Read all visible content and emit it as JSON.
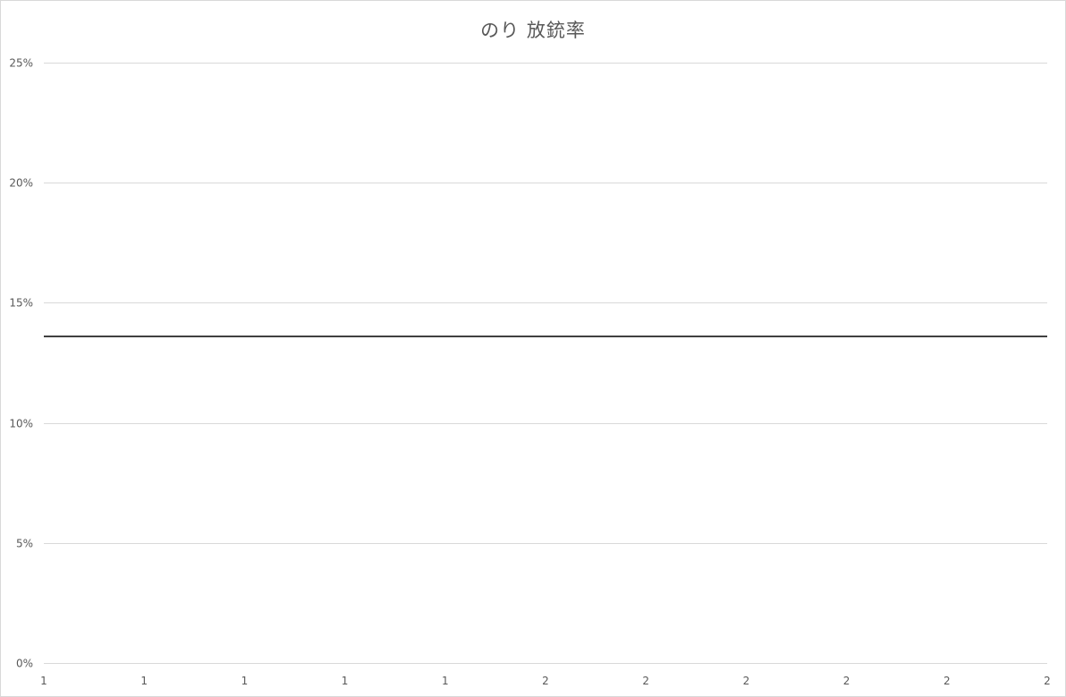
{
  "chart_data": {
    "type": "line",
    "title": "のり 放銃率",
    "xlabel": "",
    "ylabel": "",
    "x_tick_labels": [
      "1",
      "1",
      "1",
      "1",
      "1",
      "2",
      "2",
      "2",
      "2",
      "2",
      "2"
    ],
    "y_tick_labels": [
      "0%",
      "5%",
      "10%",
      "15%",
      "20%",
      "25%"
    ],
    "y_ticks": [
      0,
      5,
      10,
      15,
      20,
      25
    ],
    "ylim": [
      0,
      25
    ],
    "y_unit": "%",
    "grid": true,
    "legend": "none",
    "series": [
      {
        "color": "#404040",
        "x": [
          1,
          2
        ],
        "values": [
          13.6,
          13.6
        ]
      }
    ],
    "colors": {
      "gridline": "#d9d9d9",
      "axis_text": "#595959",
      "line": "#404040"
    }
  }
}
